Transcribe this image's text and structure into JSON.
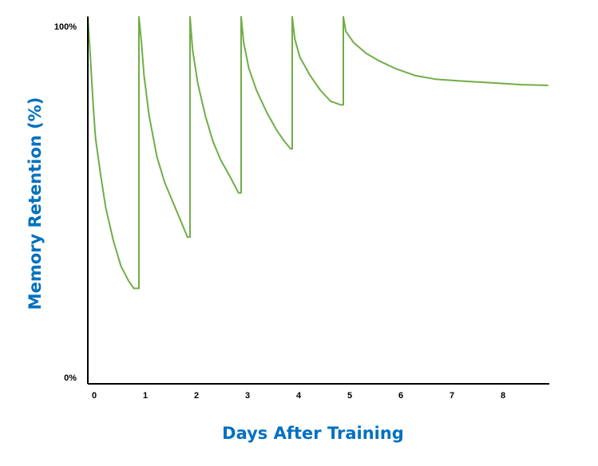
{
  "chart_data": {
    "type": "line",
    "title": "",
    "xlabel": "Days After Training",
    "ylabel": "Memory Retention (%)",
    "xlim": [
      0,
      9
    ],
    "ylim": [
      0,
      100
    ],
    "x_ticks": [
      "0",
      "1",
      "2",
      "3",
      "4",
      "5",
      "6",
      "7",
      "8"
    ],
    "y_ticks": [
      "0%",
      "100%"
    ],
    "grid": false,
    "legend": "none",
    "colors": {
      "line": "#70ad47",
      "axis_title": "#0070c0",
      "axis": "#000000"
    },
    "series": [
      {
        "name": "",
        "points": [
          [
            0,
            100
          ],
          [
            0.05,
            89
          ],
          [
            0.1,
            77
          ],
          [
            0.15,
            67
          ],
          [
            0.25,
            57
          ],
          [
            0.35,
            48
          ],
          [
            0.5,
            39
          ],
          [
            0.65,
            32
          ],
          [
            0.8,
            28
          ],
          [
            0.9,
            26
          ],
          [
            1.0,
            26
          ],
          [
            1.0,
            100
          ],
          [
            1.05,
            93
          ],
          [
            1.1,
            84
          ],
          [
            1.2,
            73
          ],
          [
            1.35,
            62
          ],
          [
            1.5,
            55
          ],
          [
            1.65,
            50
          ],
          [
            1.8,
            45
          ],
          [
            1.95,
            40
          ],
          [
            2.0,
            40
          ],
          [
            2.0,
            100
          ],
          [
            2.05,
            91
          ],
          [
            2.15,
            82
          ],
          [
            2.3,
            73
          ],
          [
            2.45,
            66
          ],
          [
            2.6,
            61
          ],
          [
            2.8,
            56
          ],
          [
            2.95,
            52
          ],
          [
            3.0,
            52
          ],
          [
            3.0,
            100
          ],
          [
            3.05,
            93
          ],
          [
            3.15,
            86
          ],
          [
            3.3,
            80
          ],
          [
            3.5,
            74
          ],
          [
            3.7,
            69
          ],
          [
            3.85,
            66
          ],
          [
            3.97,
            64
          ],
          [
            4.0,
            64
          ],
          [
            4.0,
            100
          ],
          [
            4.05,
            94
          ],
          [
            4.15,
            89
          ],
          [
            4.35,
            84
          ],
          [
            4.55,
            80
          ],
          [
            4.75,
            77
          ],
          [
            4.95,
            76
          ],
          [
            5.0,
            76
          ],
          [
            5.0,
            100
          ],
          [
            5.05,
            96
          ],
          [
            5.2,
            93
          ],
          [
            5.45,
            90
          ],
          [
            5.7,
            88
          ],
          [
            6.0,
            86
          ],
          [
            6.4,
            84
          ],
          [
            6.8,
            83
          ],
          [
            7.3,
            82.5
          ],
          [
            7.9,
            82
          ],
          [
            8.5,
            81.5
          ],
          [
            9.0,
            81.3
          ]
        ]
      }
    ]
  }
}
